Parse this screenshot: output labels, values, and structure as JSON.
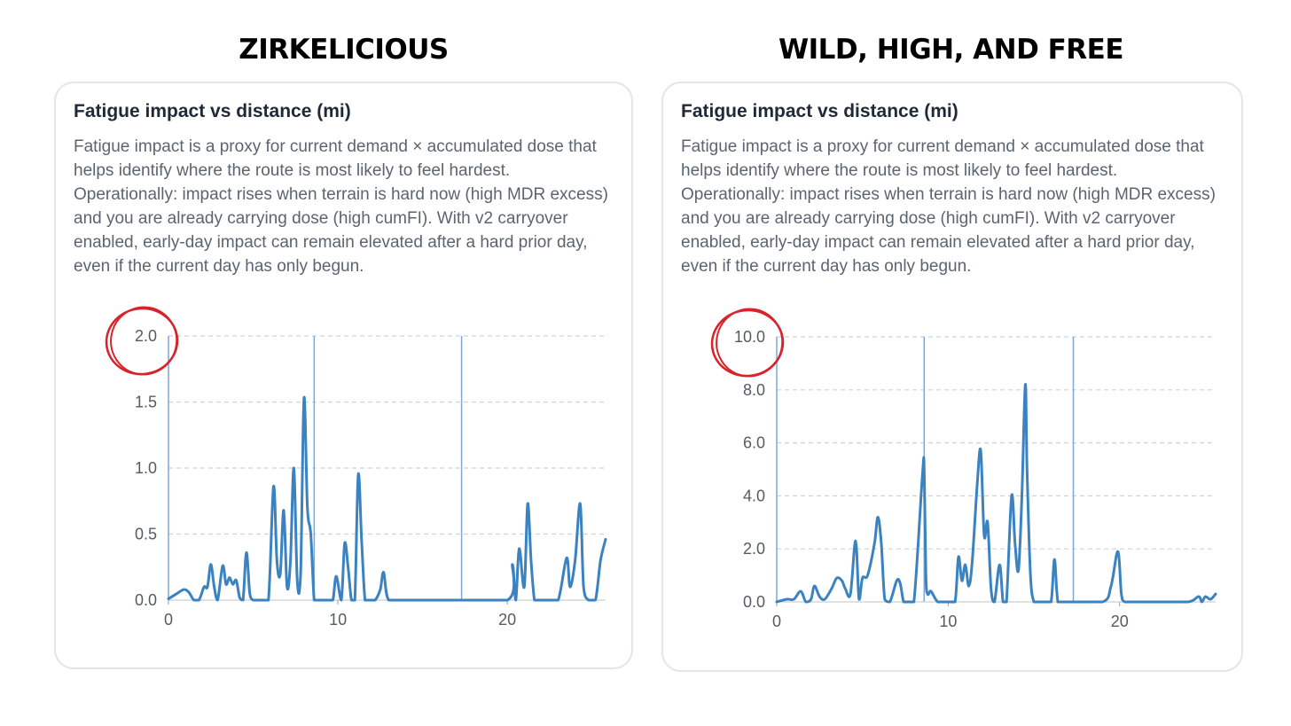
{
  "panels": [
    {
      "heading": "ZIRKELICIOUS",
      "card_title": "Fatigue impact vs distance (mi)",
      "description": "Fatigue impact is a proxy for current demand × accumulated dose that helps identify where the route is most likely to feel hardest. Operationally: impact rises when terrain is hard now (high MDR excess) and you are already carrying dose (high cumFI). With v2 carryover enabled, early-day impact can remain elevated after a hard prior day, even if the current day has only begun.",
      "annotation": "red hand-drawn circle around top y tick 2.0",
      "chart_data": {
        "type": "line",
        "xlim": [
          0,
          25.8
        ],
        "ylim": [
          0,
          2.0
        ],
        "xticks": [
          0,
          10,
          20
        ],
        "xtick_labels": [
          "0",
          "10",
          "20"
        ],
        "yticks": [
          0,
          0.5,
          1.0,
          1.5,
          2.0
        ],
        "ytick_labels": [
          "0.0",
          "0.5",
          "1.0",
          "1.5",
          "2.0"
        ],
        "grid": "horizontal dashed",
        "day_markers_x": [
          8.6,
          17.3
        ],
        "line_color": "#3b82c0",
        "marker_color": "#7ea7d8",
        "series": [
          {
            "x": [
              0,
              0.5,
              0.9,
              1.2,
              1.5,
              1.8,
              2.1,
              2.3,
              2.5,
              2.7,
              2.9,
              3.2,
              3.4,
              3.6,
              3.8,
              4.0,
              4.2,
              4.4,
              4.6,
              4.8,
              5.0,
              5.2,
              5.5,
              5.9,
              6.2,
              6.4,
              6.6,
              6.8,
              7.0,
              7.2,
              7.4,
              7.6,
              7.8,
              8.0,
              8.2,
              8.4,
              8.6,
              8.8,
              9.0,
              9.2,
              9.4,
              9.7,
              9.9,
              10.2,
              10.4,
              10.6,
              10.8,
              11.0,
              11.2,
              11.4,
              11.6,
              11.8,
              12.0,
              12.2,
              12.5,
              12.7,
              13.0,
              14.0,
              14.8,
              15.0,
              15.2,
              15.4,
              15.6,
              16.0,
              20.0,
              20.3,
              20.5,
              20.7,
              21.0,
              21.2,
              21.4,
              21.6,
              21.8,
              22.0,
              22.2,
              22.4,
              23.0,
              23.5,
              23.7,
              24.0,
              24.3,
              24.5,
              24.8,
              25.2,
              25.5,
              25.8
            ],
            "y": [
              0.01,
              0.05,
              0.08,
              0.06,
              0.0,
              0.0,
              0.1,
              0.1,
              0.27,
              0.1,
              0.0,
              0.26,
              0.12,
              0.17,
              0.12,
              0.15,
              0.02,
              0.0,
              0.36,
              0.05,
              0.0,
              0.0,
              0.0,
              0.0,
              0.86,
              0.3,
              0.2,
              0.68,
              0.1,
              0.3,
              1.0,
              0.15,
              0.2,
              1.53,
              0.7,
              0.5,
              0.0,
              0.0,
              0.0,
              0.0,
              0.0,
              0.0,
              0.18,
              0.0,
              0.43,
              0.25,
              0.0,
              0.0,
              0.95,
              0.45,
              0.0,
              0.0,
              0.0,
              0.0,
              0.08,
              0.21,
              0.0,
              0.0,
              0.0,
              0.0,
              0.0,
              0.0,
              0.0,
              0.0,
              0.0,
              0.27,
              0.0,
              0.39,
              0.1,
              0.73,
              0.3,
              0.0,
              0.0,
              0.0,
              0.0,
              0.0,
              0.0,
              0.32,
              0.1,
              0.3,
              0.73,
              0.1,
              0.0,
              0.0,
              0.3,
              0.46
            ]
          }
        ]
      }
    },
    {
      "heading": "WILD, HIGH, AND FREE",
      "card_title": "Fatigue impact vs distance (mi)",
      "description": "Fatigue impact is a proxy for current demand × accumulated dose that helps identify where the route is most likely to feel hardest. Operationally: impact rises when terrain is hard now (high MDR excess) and you are already carrying dose (high cumFI). With v2 carryover enabled, early-day impact can remain elevated after a hard prior day, even if the current day has only begun.",
      "annotation": "red hand-drawn circle around top y tick 10.0",
      "chart_data": {
        "type": "line",
        "xlim": [
          0,
          25.6
        ],
        "ylim": [
          0,
          10.0
        ],
        "xticks": [
          0,
          10,
          20
        ],
        "xtick_labels": [
          "0",
          "10",
          "20"
        ],
        "yticks": [
          0,
          2,
          4,
          6,
          8,
          10
        ],
        "ytick_labels": [
          "0.0",
          "2.0",
          "4.0",
          "6.0",
          "8.0",
          "10.0"
        ],
        "grid": "horizontal dashed",
        "day_markers_x": [
          8.6,
          17.3
        ],
        "line_color": "#3b82c0",
        "marker_color": "#7ea7d8",
        "series": [
          {
            "x": [
              0,
              0.6,
              1.0,
              1.4,
              1.7,
              2.0,
              2.2,
              2.5,
              2.8,
              3.2,
              3.5,
              3.8,
              4.0,
              4.3,
              4.6,
              4.8,
              5.0,
              5.3,
              5.7,
              5.9,
              6.1,
              6.3,
              6.6,
              7.0,
              7.2,
              7.4,
              7.6,
              8.0,
              8.5,
              8.6,
              8.7,
              8.8,
              9.0,
              9.4,
              10.0,
              10.4,
              10.6,
              10.8,
              11.0,
              11.2,
              11.4,
              11.7,
              11.9,
              12.1,
              12.3,
              12.5,
              12.7,
              13.0,
              13.2,
              13.4,
              13.7,
              13.9,
              14.1,
              14.3,
              14.5,
              14.6,
              14.8,
              15.0,
              15.2,
              15.6,
              16.0,
              16.2,
              16.4,
              16.8,
              19.0,
              19.5,
              19.9,
              20.1,
              20.3,
              20.8,
              22.0,
              24.0,
              24.6,
              24.8,
              25.0,
              25.3,
              25.6
            ],
            "y": [
              0.0,
              0.1,
              0.1,
              0.4,
              0.0,
              0.1,
              0.6,
              0.2,
              0.1,
              0.5,
              0.9,
              0.8,
              0.5,
              0.3,
              2.3,
              0.1,
              0.9,
              1.0,
              2.2,
              3.2,
              2.2,
              0.1,
              0.0,
              0.8,
              0.7,
              0.0,
              0.0,
              0.0,
              4.8,
              5.0,
              1.0,
              0.3,
              0.4,
              0.0,
              0.0,
              0.0,
              1.7,
              0.8,
              1.4,
              0.6,
              1.5,
              4.5,
              5.7,
              2.5,
              3.0,
              0.5,
              0.0,
              1.4,
              0.0,
              0.0,
              4.0,
              2.2,
              1.2,
              4.0,
              8.2,
              5.0,
              1.0,
              0.0,
              0.0,
              0.0,
              0.0,
              1.6,
              0.0,
              0.0,
              0.0,
              0.6,
              1.9,
              0.3,
              0.0,
              0.0,
              0.0,
              0.0,
              0.2,
              0.0,
              0.2,
              0.1,
              0.3
            ]
          }
        ]
      }
    }
  ]
}
